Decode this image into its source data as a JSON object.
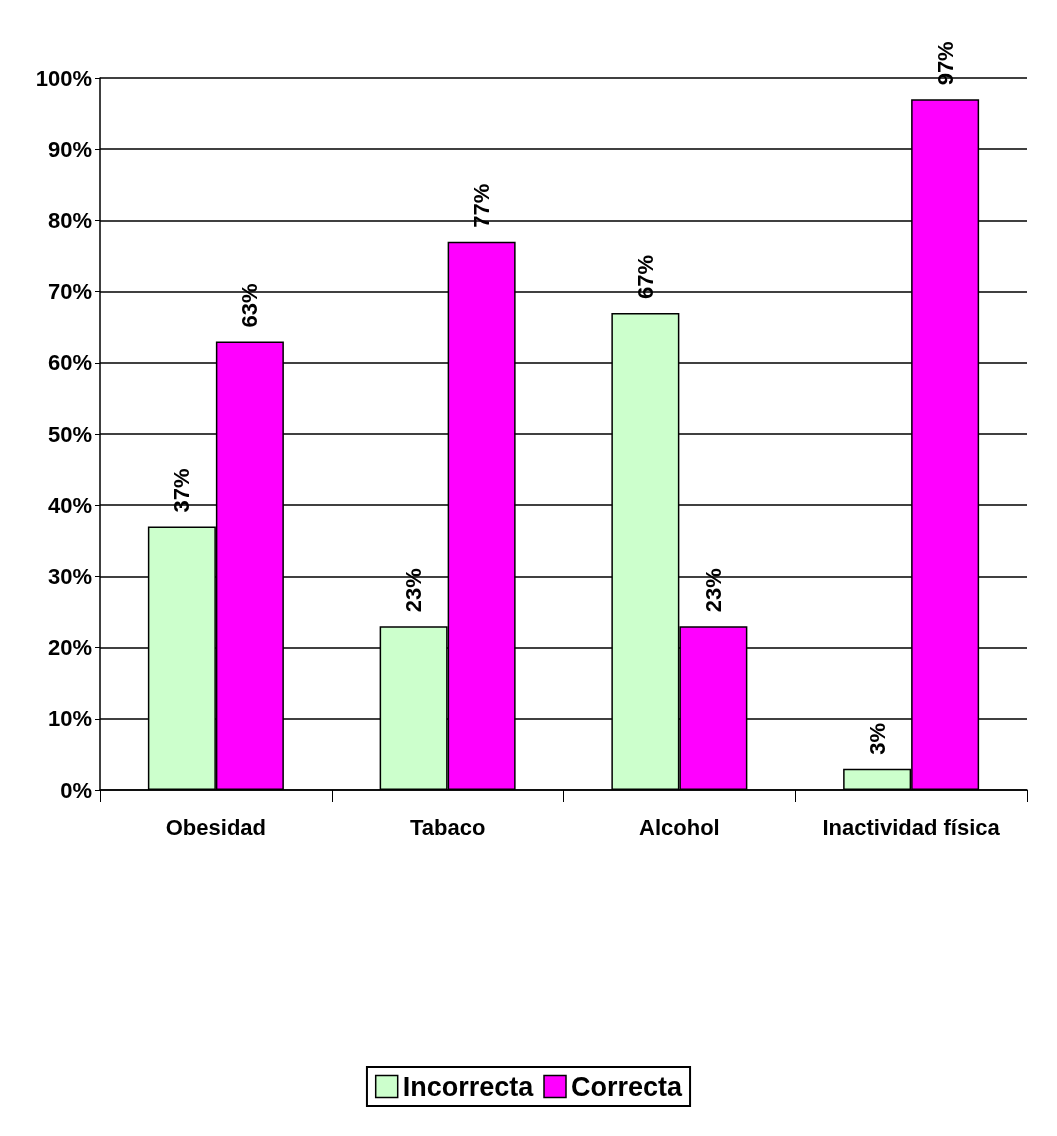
{
  "chart_data": {
    "type": "bar",
    "categories": [
      "Obesidad",
      "Tabaco",
      "Alcohol",
      "Inactividad física"
    ],
    "series": [
      {
        "name": "Incorrecta",
        "color": "#ccffcc",
        "values": [
          37,
          23,
          67,
          3
        ],
        "value_labels": [
          "37%",
          "23%",
          "67%",
          "3%"
        ]
      },
      {
        "name": "Correcta",
        "color": "#ff00ff",
        "values": [
          63,
          77,
          23,
          97
        ],
        "value_labels": [
          "63%",
          "77%",
          "23%",
          "97%"
        ]
      }
    ],
    "ylim": [
      0,
      100
    ],
    "yticks": [
      {
        "value": 0,
        "label": "0%"
      },
      {
        "value": 10,
        "label": "10%"
      },
      {
        "value": 20,
        "label": "20%"
      },
      {
        "value": 30,
        "label": "30%"
      },
      {
        "value": 40,
        "label": "40%"
      },
      {
        "value": 50,
        "label": "50%"
      },
      {
        "value": 60,
        "label": "60%"
      },
      {
        "value": 70,
        "label": "70%"
      },
      {
        "value": 80,
        "label": "80%"
      },
      {
        "value": 90,
        "label": "90%"
      },
      {
        "value": 100,
        "label": "100%"
      }
    ],
    "grid": "y",
    "legend": "bottom"
  }
}
